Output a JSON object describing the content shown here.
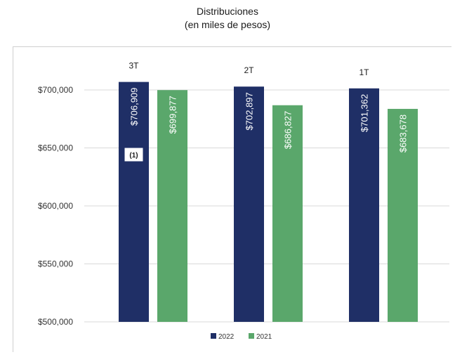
{
  "chart_data": {
    "type": "bar",
    "title": "Distribuciones",
    "subtitle": "(en miles de pesos)",
    "categories": [
      "3T",
      "2T",
      "1T"
    ],
    "series": [
      {
        "name": "2022",
        "color": "#1f2f66",
        "values": [
          706909,
          702897,
          701362
        ],
        "labels": [
          "$706,909",
          "$702,897",
          "$701,362"
        ]
      },
      {
        "name": "2021",
        "color": "#5aa76b",
        "values": [
          699877,
          686827,
          683678
        ],
        "labels": [
          "$699,877",
          "$686,827",
          "$683,678"
        ]
      }
    ],
    "ylim": [
      500000,
      700000
    ],
    "yticks": [
      500000,
      550000,
      600000,
      650000,
      700000
    ],
    "yticklabels": [
      "$500,000",
      "$550,000",
      "$600,000",
      "$650,000",
      "$700,000"
    ],
    "annotation": "(1)",
    "grid": true,
    "legend": "bottom"
  }
}
